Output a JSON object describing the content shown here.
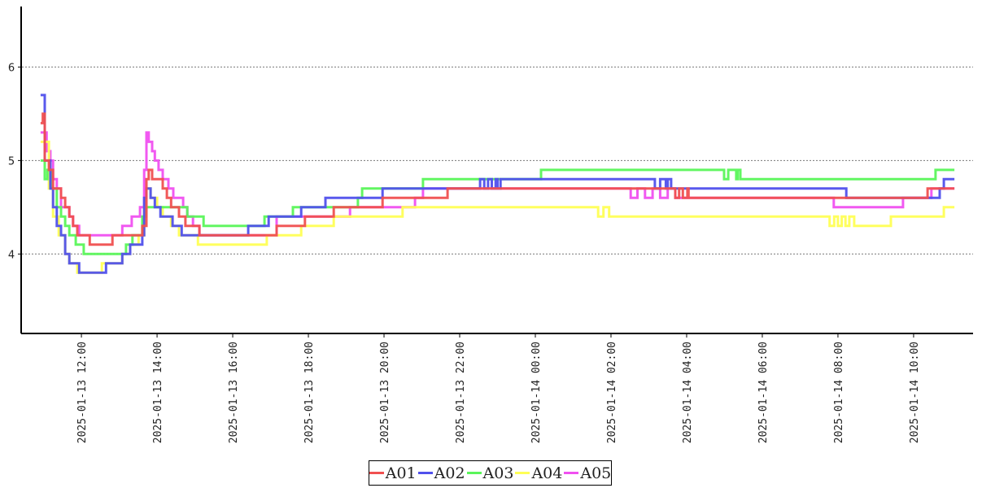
{
  "chart_data": {
    "type": "line",
    "title": "",
    "xlabel": "",
    "ylabel": "",
    "x_unit": "hours since 2025-01-13 00:00",
    "xlim": [
      10.45,
      35.55
    ],
    "ylim": [
      3.15,
      6.63
    ],
    "grid": "horizontal dotted",
    "legend_position": "bottom-center",
    "x_ticks": [
      {
        "value": 12,
        "label": "2025-01-13 12:00"
      },
      {
        "value": 14,
        "label": "2025-01-13 14:00"
      },
      {
        "value": 16,
        "label": "2025-01-13 16:00"
      },
      {
        "value": 18,
        "label": "2025-01-13 18:00"
      },
      {
        "value": 20,
        "label": "2025-01-13 20:00"
      },
      {
        "value": 22,
        "label": "2025-01-13 22:00"
      },
      {
        "value": 24,
        "label": "2025-01-14 00:00"
      },
      {
        "value": 26,
        "label": "2025-01-14 02:00"
      },
      {
        "value": 28,
        "label": "2025-01-14 04:00"
      },
      {
        "value": 30,
        "label": "2025-01-14 06:00"
      },
      {
        "value": 32,
        "label": "2025-01-14 08:00"
      },
      {
        "value": 34,
        "label": "2025-01-14 10:00"
      }
    ],
    "y_ticks": [
      {
        "value": 4,
        "label": "4"
      },
      {
        "value": 5,
        "label": "5"
      },
      {
        "value": 6,
        "label": "6"
      }
    ],
    "series": [
      {
        "name": "A05",
        "color": "#f050f0",
        "points": [
          [
            10.92,
            5.3
          ],
          [
            11.08,
            5.1
          ],
          [
            11.18,
            5.0
          ],
          [
            11.25,
            4.8
          ],
          [
            11.35,
            4.7
          ],
          [
            11.46,
            4.5
          ],
          [
            11.68,
            4.4
          ],
          [
            11.78,
            4.3
          ],
          [
            11.94,
            4.2
          ],
          [
            13.08,
            4.3
          ],
          [
            13.33,
            4.4
          ],
          [
            13.55,
            4.5
          ],
          [
            13.66,
            4.9
          ],
          [
            13.72,
            5.3
          ],
          [
            13.78,
            5.2
          ],
          [
            13.87,
            5.1
          ],
          [
            13.94,
            5.0
          ],
          [
            14.04,
            4.9
          ],
          [
            14.15,
            4.8
          ],
          [
            14.3,
            4.7
          ],
          [
            14.43,
            4.6
          ],
          [
            14.69,
            4.5
          ],
          [
            14.8,
            4.4
          ],
          [
            14.95,
            4.3
          ],
          [
            15.12,
            4.2
          ],
          [
            17.16,
            4.4
          ],
          [
            19.1,
            4.5
          ],
          [
            20.82,
            4.6
          ],
          [
            21.03,
            4.7
          ],
          [
            26.52,
            4.6
          ],
          [
            26.7,
            4.7
          ],
          [
            26.9,
            4.6
          ],
          [
            27.1,
            4.7
          ],
          [
            27.3,
            4.6
          ],
          [
            27.5,
            4.7
          ],
          [
            27.7,
            4.6
          ],
          [
            31.89,
            4.5
          ],
          [
            33.72,
            4.6
          ],
          [
            34.47,
            4.7
          ],
          [
            35.08,
            4.7
          ]
        ]
      },
      {
        "name": "A04",
        "color": "#ffff55",
        "points": [
          [
            10.92,
            5.2
          ],
          [
            11.14,
            4.7
          ],
          [
            11.25,
            4.4
          ],
          [
            11.4,
            4.2
          ],
          [
            11.57,
            4.0
          ],
          [
            11.68,
            3.9
          ],
          [
            11.89,
            3.8
          ],
          [
            12.54,
            3.9
          ],
          [
            13.08,
            4.0
          ],
          [
            13.29,
            4.1
          ],
          [
            13.51,
            4.2
          ],
          [
            13.66,
            4.5
          ],
          [
            13.72,
            4.7
          ],
          [
            13.83,
            4.6
          ],
          [
            14.0,
            4.5
          ],
          [
            14.15,
            4.4
          ],
          [
            14.37,
            4.3
          ],
          [
            14.58,
            4.2
          ],
          [
            15.08,
            4.1
          ],
          [
            16.9,
            4.2
          ],
          [
            17.81,
            4.3
          ],
          [
            18.67,
            4.4
          ],
          [
            20.49,
            4.5
          ],
          [
            25.66,
            4.4
          ],
          [
            25.8,
            4.5
          ],
          [
            25.95,
            4.4
          ],
          [
            31.78,
            4.3
          ],
          [
            31.9,
            4.4
          ],
          [
            32.0,
            4.3
          ],
          [
            32.1,
            4.4
          ],
          [
            32.2,
            4.3
          ],
          [
            32.3,
            4.4
          ],
          [
            32.43,
            4.3
          ],
          [
            33.4,
            4.4
          ],
          [
            34.8,
            4.5
          ],
          [
            35.08,
            4.5
          ]
        ]
      },
      {
        "name": "A03",
        "color": "#5af55a",
        "points": [
          [
            10.92,
            5.0
          ],
          [
            11.03,
            4.8
          ],
          [
            11.1,
            4.9
          ],
          [
            11.2,
            4.7
          ],
          [
            11.35,
            4.5
          ],
          [
            11.46,
            4.4
          ],
          [
            11.57,
            4.3
          ],
          [
            11.68,
            4.2
          ],
          [
            11.85,
            4.1
          ],
          [
            12.06,
            4.0
          ],
          [
            13.18,
            4.1
          ],
          [
            13.35,
            4.2
          ],
          [
            13.61,
            4.4
          ],
          [
            13.72,
            4.5
          ],
          [
            14.8,
            4.4
          ],
          [
            15.23,
            4.3
          ],
          [
            16.84,
            4.4
          ],
          [
            17.59,
            4.5
          ],
          [
            19.31,
            4.6
          ],
          [
            19.42,
            4.7
          ],
          [
            21.03,
            4.8
          ],
          [
            24.15,
            4.9
          ],
          [
            28.99,
            4.8
          ],
          [
            29.1,
            4.9
          ],
          [
            29.31,
            4.8
          ],
          [
            29.35,
            4.9
          ],
          [
            29.42,
            4.8
          ],
          [
            34.58,
            4.9
          ],
          [
            35.08,
            4.9
          ]
        ]
      },
      {
        "name": "A02",
        "color": "#5050ec",
        "points": [
          [
            10.92,
            5.7
          ],
          [
            11.03,
            5.0
          ],
          [
            11.18,
            4.7
          ],
          [
            11.25,
            4.5
          ],
          [
            11.35,
            4.3
          ],
          [
            11.46,
            4.2
          ],
          [
            11.57,
            4.0
          ],
          [
            11.68,
            3.9
          ],
          [
            11.94,
            3.8
          ],
          [
            12.65,
            3.9
          ],
          [
            13.08,
            4.0
          ],
          [
            13.29,
            4.1
          ],
          [
            13.61,
            4.2
          ],
          [
            13.66,
            4.6
          ],
          [
            13.72,
            4.7
          ],
          [
            13.83,
            4.6
          ],
          [
            13.94,
            4.5
          ],
          [
            14.09,
            4.4
          ],
          [
            14.41,
            4.3
          ],
          [
            14.65,
            4.2
          ],
          [
            16.41,
            4.3
          ],
          [
            16.95,
            4.4
          ],
          [
            17.81,
            4.5
          ],
          [
            18.45,
            4.6
          ],
          [
            19.96,
            4.7
          ],
          [
            22.54,
            4.8
          ],
          [
            22.65,
            4.7
          ],
          [
            22.75,
            4.8
          ],
          [
            22.85,
            4.7
          ],
          [
            22.95,
            4.8
          ],
          [
            23.0,
            4.7
          ],
          [
            23.08,
            4.8
          ],
          [
            27.16,
            4.7
          ],
          [
            27.3,
            4.8
          ],
          [
            27.45,
            4.7
          ],
          [
            27.5,
            4.8
          ],
          [
            27.59,
            4.7
          ],
          [
            32.22,
            4.6
          ],
          [
            34.69,
            4.7
          ],
          [
            34.8,
            4.8
          ],
          [
            35.08,
            4.8
          ]
        ]
      },
      {
        "name": "A01",
        "color": "#f05050",
        "points": [
          [
            10.92,
            5.4
          ],
          [
            10.98,
            5.5
          ],
          [
            11.03,
            5.0
          ],
          [
            11.14,
            4.9
          ],
          [
            11.25,
            4.7
          ],
          [
            11.46,
            4.6
          ],
          [
            11.57,
            4.5
          ],
          [
            11.68,
            4.4
          ],
          [
            11.78,
            4.3
          ],
          [
            11.89,
            4.2
          ],
          [
            12.22,
            4.1
          ],
          [
            12.82,
            4.2
          ],
          [
            13.61,
            4.3
          ],
          [
            13.72,
            4.8
          ],
          [
            13.78,
            4.9
          ],
          [
            13.87,
            4.8
          ],
          [
            14.15,
            4.7
          ],
          [
            14.26,
            4.6
          ],
          [
            14.37,
            4.5
          ],
          [
            14.58,
            4.4
          ],
          [
            14.75,
            4.3
          ],
          [
            15.12,
            4.2
          ],
          [
            17.16,
            4.3
          ],
          [
            17.91,
            4.4
          ],
          [
            18.67,
            4.5
          ],
          [
            19.96,
            4.6
          ],
          [
            21.68,
            4.7
          ],
          [
            27.7,
            4.6
          ],
          [
            27.8,
            4.7
          ],
          [
            27.9,
            4.6
          ],
          [
            28.02,
            4.7
          ],
          [
            28.05,
            4.6
          ],
          [
            34.37,
            4.7
          ],
          [
            35.08,
            4.7
          ]
        ]
      }
    ]
  }
}
